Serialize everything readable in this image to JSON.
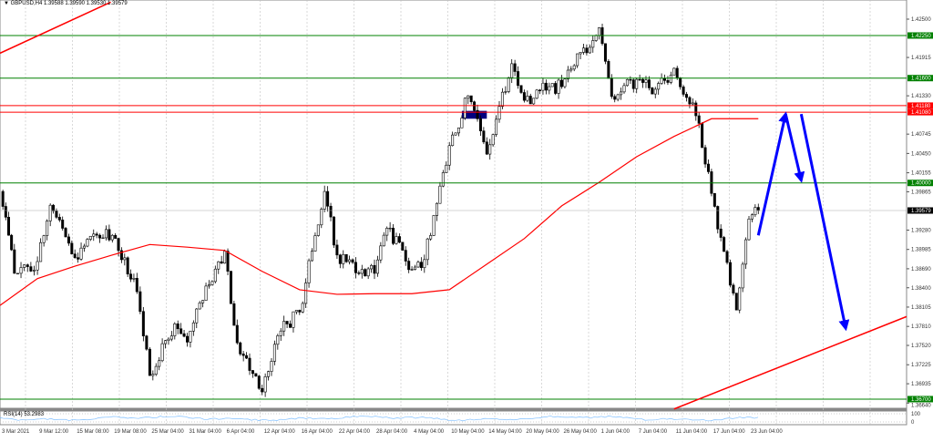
{
  "header": {
    "symbol": "GBPUSD,H4",
    "ohlc": "1.39588 1.39590 1.39530 1.39579"
  },
  "rsi": {
    "label": "RSI(14) 53.2983",
    "scale_top": "100",
    "scale_bottom": "0",
    "line_color": "#7fbfff"
  },
  "colors": {
    "background": "#ffffff",
    "candle": "#000000",
    "ma": "#ff0000",
    "support_resistance": "#008000",
    "red_level": "#ff0000",
    "trendline": "#ff0000",
    "arrow": "#0000ff",
    "rectangle": "#000080",
    "grid": "#c0c0c0"
  },
  "chart_data": {
    "type": "candlestick",
    "title": "GBPUSD,H4",
    "ylim": [
      1.366,
      1.428
    ],
    "grid": true,
    "y_ticks": [
      "1.42500",
      "1.41915",
      "1.41330",
      "1.40745",
      "1.40450",
      "1.40155",
      "1.39865",
      "1.39280",
      "1.38985",
      "1.38690",
      "1.38400",
      "1.38105",
      "1.37810",
      "1.37520",
      "1.37225",
      "1.36935",
      "1.36640"
    ],
    "x_ticks": [
      {
        "label": "3 Mar 2021",
        "t": "2021-03-03T00:00"
      },
      {
        "label": "9 Mar 12:00",
        "t": "2021-03-09T12:00"
      },
      {
        "label": "15 Mar 08:00",
        "t": "2021-03-15T08:00"
      },
      {
        "label": "19 Mar 08:00",
        "t": "2021-03-19T08:00"
      },
      {
        "label": "25 Mar 04:00",
        "t": "2021-03-25T04:00"
      },
      {
        "label": "31 Mar 04:00",
        "t": "2021-03-31T04:00"
      },
      {
        "label": "6 Apr 04:00",
        "t": "2021-04-06T04:00"
      },
      {
        "label": "12 Apr 04:00",
        "t": "2021-04-12T04:00"
      },
      {
        "label": "16 Apr 04:00",
        "t": "2021-04-16T04:00"
      },
      {
        "label": "22 Apr 04:00",
        "t": "2021-04-22T04:00"
      },
      {
        "label": "28 Apr 04:00",
        "t": "2021-04-28T04:00"
      },
      {
        "label": "4 May 04:00",
        "t": "2021-05-04T04:00"
      },
      {
        "label": "10 May 04:00",
        "t": "2021-05-10T04:00"
      },
      {
        "label": "14 May 04:00",
        "t": "2021-05-14T04:00"
      },
      {
        "label": "20 May 04:00",
        "t": "2021-05-20T04:00"
      },
      {
        "label": "26 May 04:00",
        "t": "2021-05-26T04:00"
      },
      {
        "label": "1 Jun 04:00",
        "t": "2021-06-01T04:00"
      },
      {
        "label": "7 Jun 04:00",
        "t": "2021-06-07T04:00"
      },
      {
        "label": "11 Jun 04:00",
        "t": "2021-06-11T04:00"
      },
      {
        "label": "17 Jun 04:00",
        "t": "2021-06-17T04:00"
      },
      {
        "label": "23 Jun 04:00",
        "t": "2021-06-23T04:00"
      }
    ],
    "price_path": [
      [
        "2021-03-03T00:00",
        1.3987
      ],
      [
        "2021-03-05T12:00",
        1.3862
      ],
      [
        "2021-03-09T12:00",
        1.388
      ],
      [
        "2021-03-11T12:00",
        1.3966
      ],
      [
        "2021-03-15T08:00",
        1.3886
      ],
      [
        "2021-03-17T08:00",
        1.3922
      ],
      [
        "2021-03-19T08:00",
        1.392
      ],
      [
        "2021-03-23T04:00",
        1.3834
      ],
      [
        "2021-03-25T04:00",
        1.3706
      ],
      [
        "2021-03-29T04:00",
        1.3785
      ],
      [
        "2021-03-31T04:00",
        1.3757
      ],
      [
        "2021-04-02T04:00",
        1.3817
      ],
      [
        "2021-04-06T04:00",
        1.3896
      ],
      [
        "2021-04-08T04:00",
        1.3756
      ],
      [
        "2021-04-12T04:00",
        1.3681
      ],
      [
        "2021-04-14T04:00",
        1.3774
      ],
      [
        "2021-04-16T04:00",
        1.3803
      ],
      [
        "2021-04-20T04:00",
        1.3987
      ],
      [
        "2021-04-22T04:00",
        1.389
      ],
      [
        "2021-04-26T04:00",
        1.3868
      ],
      [
        "2021-04-28T04:00",
        1.3862
      ],
      [
        "2021-04-30T04:00",
        1.3931
      ],
      [
        "2021-05-04T04:00",
        1.3868
      ],
      [
        "2021-05-06T04:00",
        1.3883
      ],
      [
        "2021-05-10T04:00",
        1.4057
      ],
      [
        "2021-05-12T04:00",
        1.4133
      ],
      [
        "2021-05-14T04:00",
        1.4044
      ],
      [
        "2021-05-18T04:00",
        1.4182
      ],
      [
        "2021-05-20T04:00",
        1.4126
      ],
      [
        "2021-05-24T04:00",
        1.4147
      ],
      [
        "2021-05-26T04:00",
        1.4147
      ],
      [
        "2021-05-28T04:00",
        1.4179
      ],
      [
        "2021-06-01T04:00",
        1.4237
      ],
      [
        "2021-06-03T04:00",
        1.4132
      ],
      [
        "2021-06-07T04:00",
        1.4158
      ],
      [
        "2021-06-09T04:00",
        1.4143
      ],
      [
        "2021-06-11T04:00",
        1.4175
      ],
      [
        "2021-06-15T04:00",
        1.4091
      ],
      [
        "2021-06-17T04:00",
        1.3984
      ],
      [
        "2021-06-21T04:00",
        1.3806
      ],
      [
        "2021-06-23T04:00",
        1.3945
      ],
      [
        "2021-06-24T04:00",
        1.39579
      ]
    ],
    "moving_average": [
      [
        "2021-03-03T00:00",
        1.3813
      ],
      [
        "2021-03-09T12:00",
        1.3854
      ],
      [
        "2021-03-15T08:00",
        1.3873
      ],
      [
        "2021-03-19T08:00",
        1.389
      ],
      [
        "2021-03-25T04:00",
        1.3906
      ],
      [
        "2021-03-31T04:00",
        1.3902
      ],
      [
        "2021-04-06T04:00",
        1.3897
      ],
      [
        "2021-04-12T04:00",
        1.3865
      ],
      [
        "2021-04-16T04:00",
        1.3837
      ],
      [
        "2021-04-22T04:00",
        1.383
      ],
      [
        "2021-04-28T04:00",
        1.3831
      ],
      [
        "2021-05-04T04:00",
        1.3831
      ],
      [
        "2021-05-10T04:00",
        1.3837
      ],
      [
        "2021-05-14T04:00",
        1.3876
      ],
      [
        "2021-05-20T04:00",
        1.3915
      ],
      [
        "2021-05-26T04:00",
        1.3965
      ],
      [
        "2021-06-01T04:00",
        1.4001
      ],
      [
        "2021-06-07T04:00",
        1.404
      ],
      [
        "2021-06-11T04:00",
        1.4071
      ],
      [
        "2021-06-17T04:00",
        1.4098
      ],
      [
        "2021-06-23T04:00",
        1.4098
      ],
      [
        "2021-06-24T04:00",
        1.4098
      ]
    ],
    "levels": [
      {
        "price": 1.4225,
        "label": "1.42250",
        "kind": "green"
      },
      {
        "price": 1.416,
        "label": "1.41600",
        "kind": "green"
      },
      {
        "price": 1.4118,
        "label": "1.41180",
        "kind": "red"
      },
      {
        "price": 1.4108,
        "label": "1.41080",
        "kind": "red"
      },
      {
        "price": 1.4,
        "label": "1.40000",
        "kind": "green"
      },
      {
        "price": 1.367,
        "label": "1.36700",
        "kind": "green"
      }
    ],
    "current_price": {
      "price": 1.39579,
      "label": "1.39579"
    },
    "trendlines": [
      [
        [
          "2021-03-03T00:00",
          1.4198
        ],
        [
          "2021-03-19T04:00",
          1.4276
        ]
      ],
      [
        [
          "2021-06-11T04:00",
          1.3655
        ],
        [
          "2021-07-10T00:00",
          1.3796
        ]
      ]
    ],
    "arrows": [
      [
        [
          "2021-06-24T04:00",
          1.392
        ],
        [
          "2021-06-27T02:00",
          1.4105
        ]
      ],
      [
        [
          "2021-06-27T02:00",
          1.4105
        ],
        [
          "2021-06-28T18:00",
          1.4004
        ]
      ],
      [
        [
          "2021-06-28T18:00",
          1.4105
        ],
        [
          "2021-07-03T12:00",
          1.3778
        ]
      ]
    ],
    "rectangle": [
      [
        "2021-05-11T12:00",
        1.411
      ],
      [
        "2021-05-14T04:00",
        1.4098
      ]
    ]
  }
}
